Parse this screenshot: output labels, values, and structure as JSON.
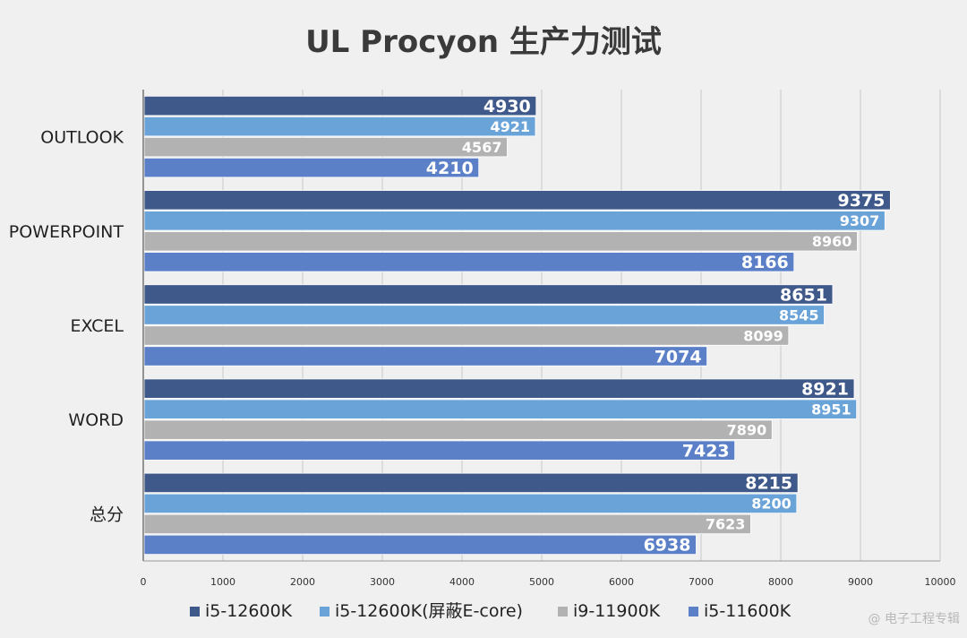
{
  "chart_data": {
    "type": "bar",
    "orientation": "horizontal",
    "title": "UL Procyon 生产力测试",
    "categories": [
      "OUTLOOK",
      "POWERPOINT",
      "EXCEL",
      "WORD",
      "总分"
    ],
    "series": [
      {
        "name": "i5-12600K",
        "color": "#3f5a8a",
        "values": [
          4930,
          9375,
          8651,
          8921,
          8215
        ]
      },
      {
        "name": "i5-12600K(屏蔽E-core)",
        "color": "#6aa3d8",
        "values": [
          4921,
          9307,
          8545,
          8951,
          8200
        ]
      },
      {
        "name": "i9-11900K",
        "color": "#b2b2b2",
        "values": [
          4567,
          8960,
          8099,
          7890,
          7623
        ]
      },
      {
        "name": "i5-11600K",
        "color": "#5b80c8",
        "values": [
          4210,
          8166,
          7074,
          7423,
          6938
        ]
      }
    ],
    "xlim": [
      0,
      10000
    ],
    "xticks": [
      0,
      1000,
      2000,
      3000,
      4000,
      5000,
      6000,
      7000,
      8000,
      9000,
      10000
    ],
    "grid": true,
    "legend_position": "bottom",
    "xlabel": "",
    "ylabel": ""
  },
  "watermark": "@ 电子工程专辑"
}
